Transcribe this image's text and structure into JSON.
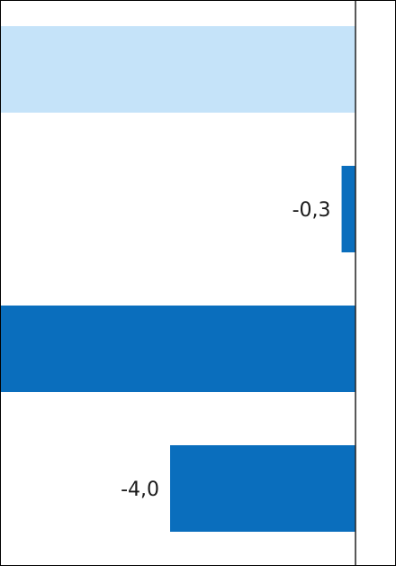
{
  "chart_data": {
    "type": "bar",
    "orientation": "horizontal",
    "bars": [
      {
        "value": null,
        "label": "",
        "color": "#c5e3f9"
      },
      {
        "value": -0.3,
        "label": "-0,3",
        "color": "#0a6ebd"
      },
      {
        "value": null,
        "label": "",
        "color": "#0a6ebd"
      },
      {
        "value": -4.0,
        "label": "-4,0",
        "color": "#0a6ebd"
      }
    ],
    "zero_axis": true,
    "grid": false,
    "colors": {
      "dark": "#0a6ebd",
      "light": "#c5e3f9",
      "axis": "#222222"
    }
  }
}
